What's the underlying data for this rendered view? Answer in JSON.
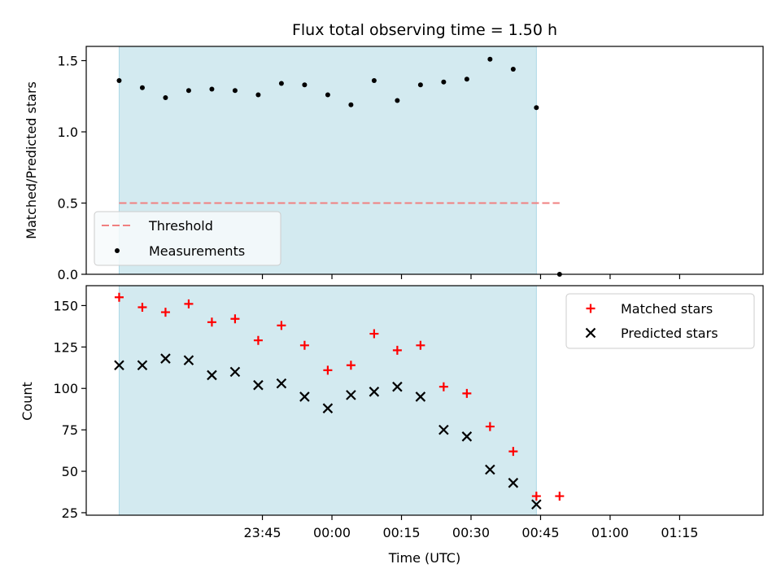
{
  "chart_data": [
    {
      "type": "scatter",
      "title": "Flux total observing time = 1.50 h",
      "ylabel": "Matched/Predicted stars",
      "xlabel": "",
      "x_unit": "minutes relative to 00:00 UTC",
      "xlim": [
        -53,
        93
      ],
      "ylim": [
        0,
        1.6
      ],
      "yticks": [
        0.0,
        0.5,
        1.0,
        1.5
      ],
      "ytick_labels": [
        "0.0",
        "0.5",
        "1.0",
        "1.5"
      ],
      "xticks": [
        -15,
        0,
        15,
        30,
        45,
        60,
        75
      ],
      "observing_window": [
        -45.9,
        44.1
      ],
      "observing_window_color": "#d3eaf0",
      "threshold": {
        "name": "Threshold",
        "value": 0.5,
        "x_range": [
          -45.9,
          49.1
        ],
        "color": "#f08080"
      },
      "series": [
        {
          "name": "Measurements",
          "marker": "dot",
          "color": "#000000",
          "x": [
            -45.9,
            -40.9,
            -35.9,
            -30.9,
            -25.9,
            -20.9,
            -15.9,
            -10.9,
            -5.9,
            -0.9,
            4.1,
            9.1,
            14.1,
            19.1,
            24.1,
            29.1,
            34.1,
            39.1,
            44.1,
            49.1
          ],
          "values": [
            1.36,
            1.31,
            1.24,
            1.29,
            1.3,
            1.29,
            1.26,
            1.34,
            1.33,
            1.26,
            1.19,
            1.36,
            1.22,
            1.33,
            1.35,
            1.37,
            1.51,
            1.44,
            1.17,
            0.0
          ]
        }
      ],
      "legend": {
        "position": "lower-left",
        "entries": [
          "Threshold",
          "Measurements"
        ]
      }
    },
    {
      "type": "scatter",
      "title": "",
      "xlabel": "Time (UTC)",
      "ylabel": "Count",
      "x_unit": "minutes relative to 00:00 UTC",
      "xlim": [
        -53,
        93
      ],
      "ylim": [
        23.5,
        162
      ],
      "yticks": [
        25,
        50,
        75,
        100,
        125,
        150
      ],
      "ytick_labels": [
        "25",
        "50",
        "75",
        "100",
        "125",
        "150"
      ],
      "xticks": [
        -15,
        0,
        15,
        30,
        45,
        60,
        75
      ],
      "xtick_labels": [
        "23:45",
        "00:00",
        "00:15",
        "00:30",
        "00:45",
        "01:00",
        "01:15"
      ],
      "observing_window": [
        -45.9,
        44.1
      ],
      "observing_window_color": "#d3eaf0",
      "series": [
        {
          "name": "Matched stars",
          "marker": "plus",
          "color": "#ff0000",
          "x": [
            -45.9,
            -40.9,
            -35.9,
            -30.9,
            -25.9,
            -20.9,
            -15.9,
            -10.9,
            -5.9,
            -0.9,
            4.1,
            9.1,
            14.1,
            19.1,
            24.1,
            29.1,
            34.1,
            39.1,
            44.1,
            49.1
          ],
          "values": [
            155,
            149,
            146,
            151,
            140,
            142,
            129,
            138,
            126,
            111,
            114,
            133,
            123,
            126,
            101,
            97,
            77,
            62,
            35,
            35
          ]
        },
        {
          "name": "Predicted stars",
          "marker": "x",
          "color": "#000000",
          "x": [
            -45.9,
            -40.9,
            -35.9,
            -30.9,
            -25.9,
            -20.9,
            -15.9,
            -10.9,
            -5.9,
            -0.9,
            4.1,
            9.1,
            14.1,
            19.1,
            24.1,
            29.1,
            34.1,
            39.1,
            44.1
          ],
          "values": [
            114,
            114,
            118,
            117,
            108,
            110,
            102,
            103,
            95,
            88,
            96,
            98,
            101,
            95,
            75,
            71,
            51,
            43,
            30
          ]
        }
      ],
      "legend": {
        "position": "top-right",
        "entries": [
          "Matched stars",
          "Predicted stars"
        ]
      }
    }
  ]
}
